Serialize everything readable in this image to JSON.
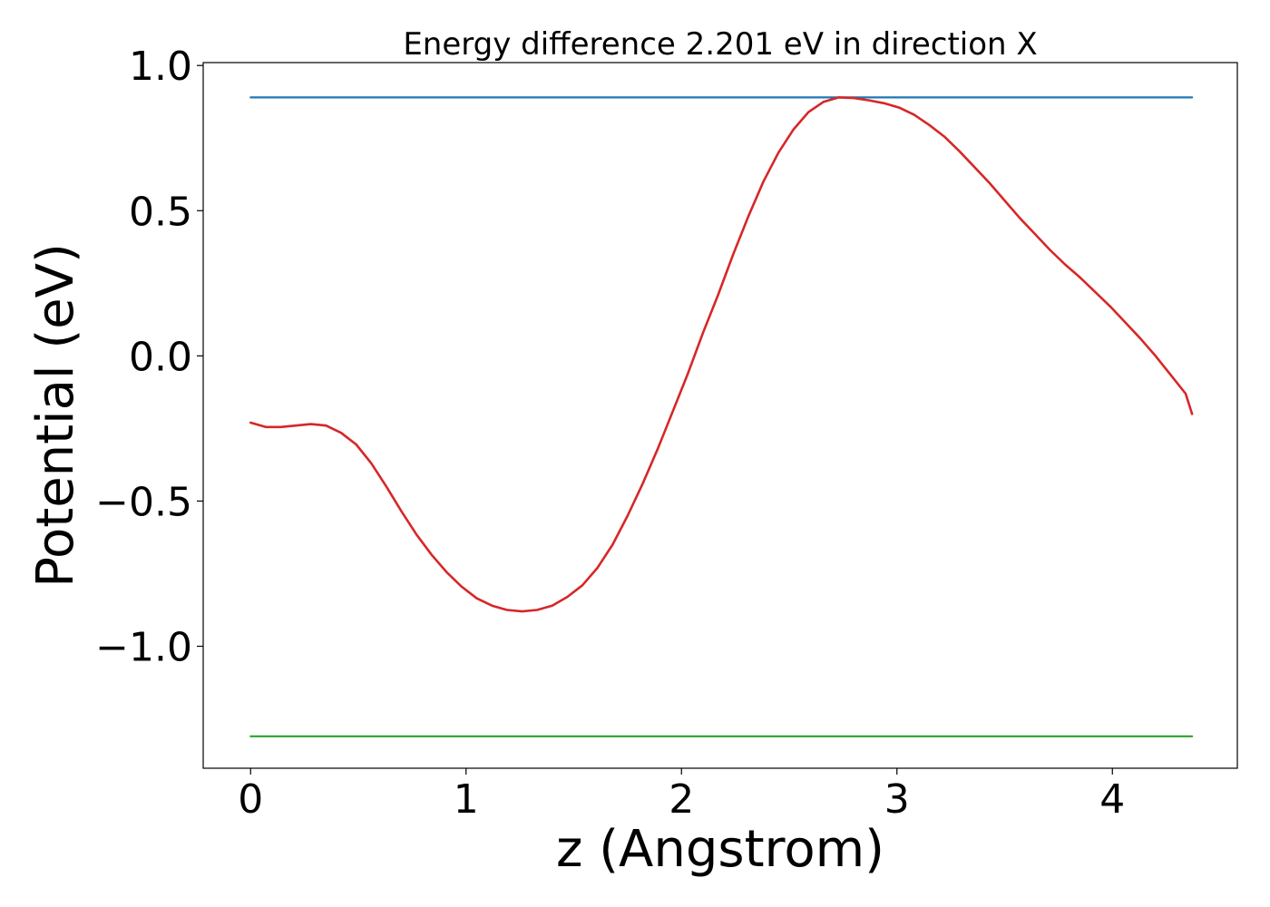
{
  "chart_data": {
    "type": "line",
    "title": "Energy difference 2.201 eV in direction X",
    "xlabel": "z (Angstrom)",
    "ylabel": "Potential (eV)",
    "xlim": [
      -0.22,
      4.58
    ],
    "ylim": [
      -1.42,
      1.01
    ],
    "grid": false,
    "xticks": [
      0,
      1,
      2,
      3,
      4
    ],
    "xtick_labels": [
      "0",
      "1",
      "2",
      "3",
      "4"
    ],
    "yticks": [
      -1.0,
      -0.5,
      0.0,
      0.5,
      1.0
    ],
    "ytick_labels": [
      "−1.0",
      "−0.5",
      "0.0",
      "0.5",
      "1.0"
    ],
    "series": [
      {
        "color": "#1f77b4",
        "x": [
          0,
          4.37
        ],
        "y": [
          0.89,
          0.89
        ]
      },
      {
        "color": "#2ca02c",
        "x": [
          0,
          4.37
        ],
        "y": [
          -1.31,
          -1.31
        ]
      },
      {
        "color": "#d62728",
        "x": [
          0,
          0.07,
          0.14,
          0.21,
          0.28,
          0.35,
          0.42,
          0.49,
          0.56,
          0.63,
          0.7,
          0.77,
          0.84,
          0.91,
          0.98,
          1.05,
          1.12,
          1.19,
          1.26,
          1.33,
          1.4,
          1.47,
          1.54,
          1.61,
          1.68,
          1.75,
          1.82,
          1.89,
          1.96,
          2.03,
          2.1,
          2.17,
          2.24,
          2.31,
          2.38,
          2.45,
          2.52,
          2.59,
          2.66,
          2.73,
          2.8,
          2.87,
          2.94,
          3.01,
          3.08,
          3.15,
          3.22,
          3.29,
          3.36,
          3.43,
          3.5,
          3.57,
          3.64,
          3.71,
          3.78,
          3.85,
          3.92,
          3.99,
          4.06,
          4.13,
          4.2,
          4.27,
          4.34,
          4.37
        ],
        "y": [
          -0.23,
          -0.245,
          -0.245,
          -0.24,
          -0.235,
          -0.24,
          -0.265,
          -0.305,
          -0.37,
          -0.45,
          -0.535,
          -0.615,
          -0.685,
          -0.745,
          -0.795,
          -0.835,
          -0.86,
          -0.875,
          -0.88,
          -0.875,
          -0.86,
          -0.83,
          -0.79,
          -0.73,
          -0.65,
          -0.55,
          -0.44,
          -0.32,
          -0.19,
          -0.06,
          0.08,
          0.21,
          0.35,
          0.48,
          0.6,
          0.7,
          0.78,
          0.84,
          0.875,
          0.89,
          0.888,
          0.88,
          0.87,
          0.855,
          0.83,
          0.795,
          0.755,
          0.705,
          0.65,
          0.595,
          0.535,
          0.475,
          0.42,
          0.365,
          0.315,
          0.27,
          0.22,
          0.17,
          0.115,
          0.06,
          0.0,
          -0.065,
          -0.13,
          -0.2
        ]
      }
    ]
  }
}
